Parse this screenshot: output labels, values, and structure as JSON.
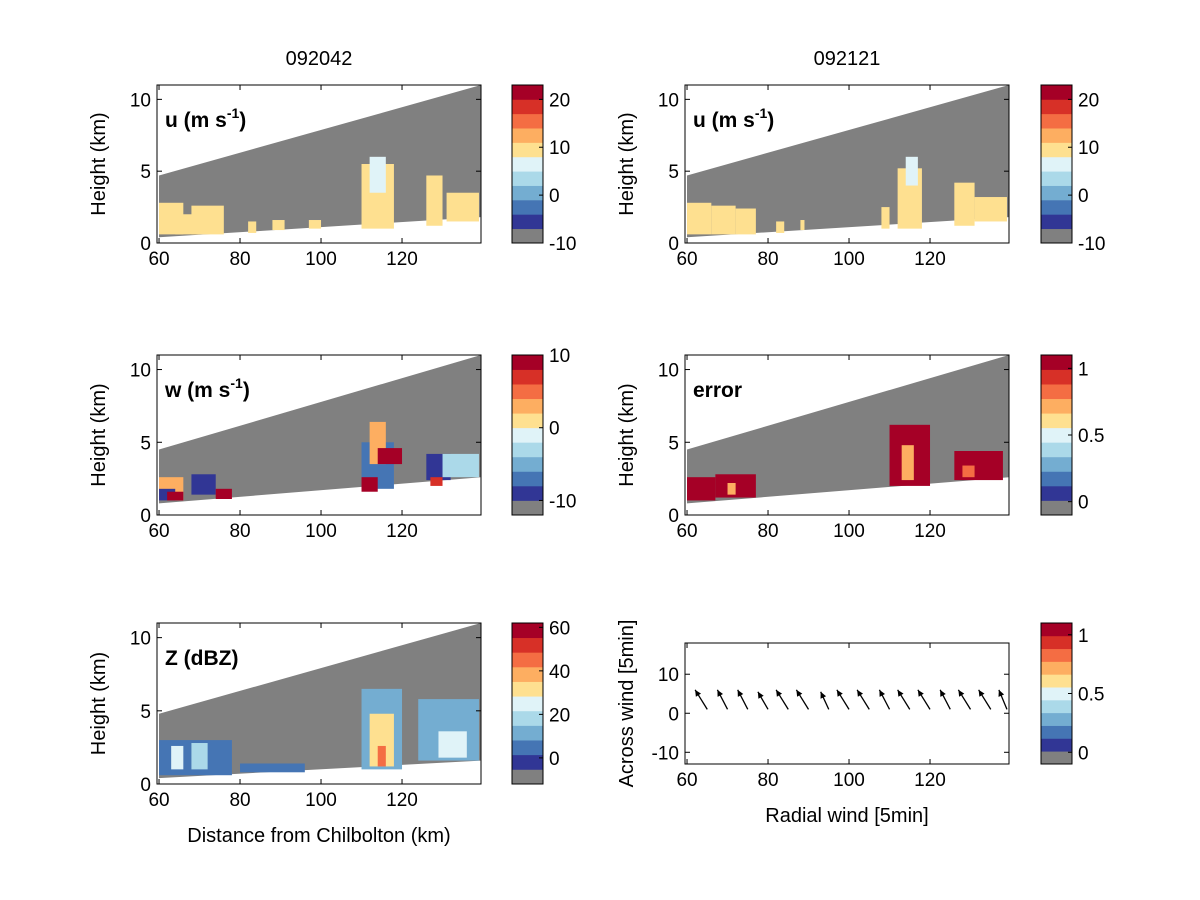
{
  "colors": {
    "mask": "#808080",
    "colormap": [
      "#808080",
      "#313695",
      "#4575b4",
      "#74add1",
      "#abd9e9",
      "#e0f3f8",
      "#fee090",
      "#fdae61",
      "#f46d43",
      "#d73027",
      "#a50026"
    ]
  },
  "chart_data": [
    {
      "id": "u1",
      "type": "heatmap",
      "title": "092042",
      "label": "u (m s",
      "label_sup": "-1",
      "label_end": ")",
      "ylabel": "Height (km)",
      "xlabel": "",
      "xlim": [
        59.5,
        139.5
      ],
      "ylim": [
        0,
        11
      ],
      "xticks": [
        "60",
        "80",
        "100",
        "120"
      ],
      "yticks": [
        "0",
        "5",
        "10"
      ],
      "beam_top": [
        [
          60,
          4.7
        ],
        [
          139.5,
          11
        ]
      ],
      "beam_bottom": [
        [
          60,
          0.4
        ],
        [
          139.5,
          1.8
        ]
      ],
      "colorbar": {
        "range": [
          -10,
          23
        ],
        "ticks": [
          "20",
          "10",
          "0",
          "-10"
        ],
        "tick_values": [
          20,
          10,
          0,
          -10
        ]
      },
      "cells": [
        {
          "x": [
            60,
            66
          ],
          "y": [
            0.6,
            2.8
          ],
          "value": 9
        },
        {
          "x": [
            64,
            70
          ],
          "y": [
            0.6,
            2.0
          ],
          "value": 8
        },
        {
          "x": [
            68,
            76
          ],
          "y": [
            0.6,
            2.6
          ],
          "value": 10
        },
        {
          "x": [
            82,
            84
          ],
          "y": [
            0.7,
            1.5
          ],
          "value": 8
        },
        {
          "x": [
            88,
            91
          ],
          "y": [
            0.9,
            1.6
          ],
          "value": 9
        },
        {
          "x": [
            97,
            100
          ],
          "y": [
            1.0,
            1.6
          ],
          "value": 9
        },
        {
          "x": [
            110,
            118
          ],
          "y": [
            1.0,
            5.5
          ],
          "value": 8
        },
        {
          "x": [
            112,
            116
          ],
          "y": [
            3.5,
            6.0
          ],
          "value": 6
        },
        {
          "x": [
            126,
            130
          ],
          "y": [
            1.2,
            4.7
          ],
          "value": 9
        },
        {
          "x": [
            131,
            139
          ],
          "y": [
            1.5,
            3.5
          ],
          "value": 9
        }
      ]
    },
    {
      "id": "u2",
      "type": "heatmap",
      "title": "092121",
      "label": "u (m s",
      "label_sup": "-1",
      "label_end": ")",
      "ylabel": "Height (km)",
      "xlabel": "",
      "xlim": [
        59.5,
        139.5
      ],
      "ylim": [
        0,
        11
      ],
      "xticks": [
        "60",
        "80",
        "100",
        "120"
      ],
      "yticks": [
        "0",
        "5",
        "10"
      ],
      "beam_top": [
        [
          60,
          4.7
        ],
        [
          139.5,
          11
        ]
      ],
      "beam_bottom": [
        [
          60,
          0.4
        ],
        [
          139.5,
          1.8
        ]
      ],
      "colorbar": {
        "range": [
          -10,
          23
        ],
        "ticks": [
          "20",
          "10",
          "0",
          "-10"
        ],
        "tick_values": [
          20,
          10,
          0,
          -10
        ]
      },
      "cells": [
        {
          "x": [
            60,
            66
          ],
          "y": [
            0.6,
            2.8
          ],
          "value": 9
        },
        {
          "x": [
            66,
            72
          ],
          "y": [
            0.6,
            2.6
          ],
          "value": 8
        },
        {
          "x": [
            72,
            77
          ],
          "y": [
            0.6,
            2.4
          ],
          "value": 9
        },
        {
          "x": [
            82,
            84
          ],
          "y": [
            0.7,
            1.5
          ],
          "value": 8
        },
        {
          "x": [
            88,
            89
          ],
          "y": [
            0.9,
            1.6
          ],
          "value": 9
        },
        {
          "x": [
            108,
            110
          ],
          "y": [
            1.0,
            2.5
          ],
          "value": 9
        },
        {
          "x": [
            112,
            118
          ],
          "y": [
            1.0,
            5.2
          ],
          "value": 8
        },
        {
          "x": [
            114,
            117
          ],
          "y": [
            4.0,
            6.0
          ],
          "value": 5
        },
        {
          "x": [
            126,
            131
          ],
          "y": [
            1.2,
            4.2
          ],
          "value": 9
        },
        {
          "x": [
            131,
            139
          ],
          "y": [
            1.5,
            3.2
          ],
          "value": 9
        }
      ]
    },
    {
      "id": "w",
      "type": "heatmap",
      "title": "",
      "label": "w (m s",
      "label_sup": "-1",
      "label_end": ")",
      "ylabel": "Height (km)",
      "xlabel": "",
      "xlim": [
        59.5,
        139.5
      ],
      "ylim": [
        0,
        11
      ],
      "xticks": [
        "60",
        "80",
        "100",
        "120"
      ],
      "yticks": [
        "0",
        "5",
        "10"
      ],
      "beam_top": [
        [
          60,
          4.5
        ],
        [
          139.5,
          11
        ]
      ],
      "beam_bottom": [
        [
          60,
          0.8
        ],
        [
          139.5,
          2.6
        ]
      ],
      "colorbar": {
        "range": [
          -12,
          10
        ],
        "ticks": [
          "10",
          "0",
          "-10"
        ],
        "tick_values": [
          10,
          0,
          -10
        ]
      },
      "cells": [
        {
          "x": [
            60,
            66
          ],
          "y": [
            1.0,
            2.6
          ],
          "value": 3
        },
        {
          "x": [
            60,
            64
          ],
          "y": [
            1.0,
            1.8
          ],
          "value": -10
        },
        {
          "x": [
            62,
            66
          ],
          "y": [
            1.0,
            1.6
          ],
          "value": 9
        },
        {
          "x": [
            68,
            74
          ],
          "y": [
            1.4,
            2.8
          ],
          "value": -9
        },
        {
          "x": [
            74,
            78
          ],
          "y": [
            1.1,
            1.8
          ],
          "value": 9
        },
        {
          "x": [
            110,
            118
          ],
          "y": [
            1.8,
            5.0
          ],
          "value": -8
        },
        {
          "x": [
            112,
            116
          ],
          "y": [
            3.5,
            6.4
          ],
          "value": 2
        },
        {
          "x": [
            110,
            114
          ],
          "y": [
            1.6,
            2.6
          ],
          "value": 9
        },
        {
          "x": [
            114,
            120
          ],
          "y": [
            3.5,
            4.6
          ],
          "value": 9
        },
        {
          "x": [
            126,
            132
          ],
          "y": [
            2.4,
            4.2
          ],
          "value": -10
        },
        {
          "x": [
            130,
            139
          ],
          "y": [
            2.6,
            4.2
          ],
          "value": -3
        },
        {
          "x": [
            127,
            130
          ],
          "y": [
            2.0,
            2.6
          ],
          "value": 6
        }
      ]
    },
    {
      "id": "error",
      "type": "heatmap",
      "title": "",
      "label": "error",
      "label_sup": "",
      "label_end": "",
      "ylabel": "Height (km)",
      "xlabel": "",
      "xlim": [
        59.5,
        139.5
      ],
      "ylim": [
        0,
        11
      ],
      "xticks": [
        "60",
        "80",
        "100",
        "120"
      ],
      "yticks": [
        "0",
        "5",
        "10"
      ],
      "beam_top": [
        [
          60,
          4.5
        ],
        [
          139.5,
          11
        ]
      ],
      "beam_bottom": [
        [
          60,
          0.8
        ],
        [
          139.5,
          2.6
        ]
      ],
      "colorbar": {
        "range": [
          -0.1,
          1.1
        ],
        "ticks": [
          "1",
          "0.5",
          "0"
        ],
        "tick_values": [
          1,
          0.5,
          0
        ]
      },
      "cells": [
        {
          "x": [
            60,
            67
          ],
          "y": [
            1.0,
            2.6
          ],
          "value": 1.05
        },
        {
          "x": [
            67,
            77
          ],
          "y": [
            1.2,
            2.8
          ],
          "value": 1.05
        },
        {
          "x": [
            70,
            72
          ],
          "y": [
            1.4,
            2.2
          ],
          "value": 0.75
        },
        {
          "x": [
            110,
            120
          ],
          "y": [
            2.0,
            6.2
          ],
          "value": 1.05
        },
        {
          "x": [
            113,
            116
          ],
          "y": [
            2.4,
            4.8
          ],
          "value": 0.75
        },
        {
          "x": [
            126,
            138
          ],
          "y": [
            2.4,
            4.4
          ],
          "value": 1.05
        },
        {
          "x": [
            128,
            131
          ],
          "y": [
            2.6,
            3.4
          ],
          "value": 0.8
        }
      ]
    },
    {
      "id": "z",
      "type": "heatmap",
      "title": "",
      "label": "Z (dBZ)",
      "label_sup": "",
      "label_end": "",
      "ylabel": "Height (km)",
      "xlabel": "Distance from Chilbolton (km)",
      "xlim": [
        59.5,
        139.5
      ],
      "ylim": [
        0,
        11
      ],
      "xticks": [
        "60",
        "80",
        "100",
        "120"
      ],
      "yticks": [
        "0",
        "5",
        "10"
      ],
      "beam_top": [
        [
          60,
          4.8
        ],
        [
          139.5,
          11
        ]
      ],
      "beam_bottom": [
        [
          60,
          0.4
        ],
        [
          139.5,
          1.6
        ]
      ],
      "colorbar": {
        "range": [
          -12,
          62
        ],
        "ticks": [
          "60",
          "40",
          "20",
          "0"
        ],
        "tick_values": [
          60,
          40,
          20,
          0
        ]
      },
      "cells": [
        {
          "x": [
            60,
            78
          ],
          "y": [
            0.6,
            3.0
          ],
          "value": 8
        },
        {
          "x": [
            63,
            66
          ],
          "y": [
            1.0,
            2.6
          ],
          "value": 22
        },
        {
          "x": [
            68,
            72
          ],
          "y": [
            1.0,
            2.8
          ],
          "value": 20
        },
        {
          "x": [
            80,
            96
          ],
          "y": [
            0.8,
            1.4
          ],
          "value": 2
        },
        {
          "x": [
            110,
            120
          ],
          "y": [
            1.0,
            6.5
          ],
          "value": 12
        },
        {
          "x": [
            112,
            118
          ],
          "y": [
            1.2,
            4.8
          ],
          "value": 30
        },
        {
          "x": [
            114,
            116
          ],
          "y": [
            1.2,
            2.6
          ],
          "value": 42
        },
        {
          "x": [
            124,
            139
          ],
          "y": [
            1.6,
            5.8
          ],
          "value": 12
        },
        {
          "x": [
            129,
            136
          ],
          "y": [
            1.8,
            3.6
          ],
          "value": 24
        }
      ]
    },
    {
      "id": "vec",
      "type": "scatter",
      "title": "",
      "label": "",
      "label_sup": "",
      "label_end": "",
      "ylabel": "Across wind [5min]",
      "xlabel": "Radial wind [5min]",
      "xlim": [
        59.5,
        139.5
      ],
      "ylim": [
        -13,
        18
      ],
      "xticks": [
        "60",
        "80",
        "100",
        "120"
      ],
      "yticks": [
        "-10",
        "0",
        "10"
      ],
      "colorbar": {
        "range": [
          -0.1,
          1.1
        ],
        "ticks": [
          "1",
          "0.5",
          "0"
        ],
        "tick_values": [
          1,
          0.5,
          0
        ]
      },
      "arrows": [
        {
          "x": 65,
          "y": 1,
          "dx": -3,
          "dy": 5
        },
        {
          "x": 70,
          "y": 1,
          "dx": -2.5,
          "dy": 5
        },
        {
          "x": 75,
          "y": 1,
          "dx": -2.5,
          "dy": 5
        },
        {
          "x": 80,
          "y": 1,
          "dx": -2.5,
          "dy": 4.5
        },
        {
          "x": 85,
          "y": 1,
          "dx": -3,
          "dy": 5
        },
        {
          "x": 90,
          "y": 1,
          "dx": -3,
          "dy": 5
        },
        {
          "x": 95,
          "y": 1,
          "dx": -2,
          "dy": 4.5
        },
        {
          "x": 100,
          "y": 1,
          "dx": -3,
          "dy": 5
        },
        {
          "x": 105,
          "y": 1,
          "dx": -3,
          "dy": 5
        },
        {
          "x": 110,
          "y": 1,
          "dx": -2.5,
          "dy": 5
        },
        {
          "x": 115,
          "y": 1,
          "dx": -3,
          "dy": 5
        },
        {
          "x": 120,
          "y": 1,
          "dx": -3,
          "dy": 5
        },
        {
          "x": 125,
          "y": 1,
          "dx": -2.5,
          "dy": 5
        },
        {
          "x": 130,
          "y": 1,
          "dx": -3,
          "dy": 5
        },
        {
          "x": 135,
          "y": 1,
          "dx": -3,
          "dy": 5
        },
        {
          "x": 139,
          "y": 1,
          "dx": -2,
          "dy": 5
        }
      ]
    }
  ]
}
